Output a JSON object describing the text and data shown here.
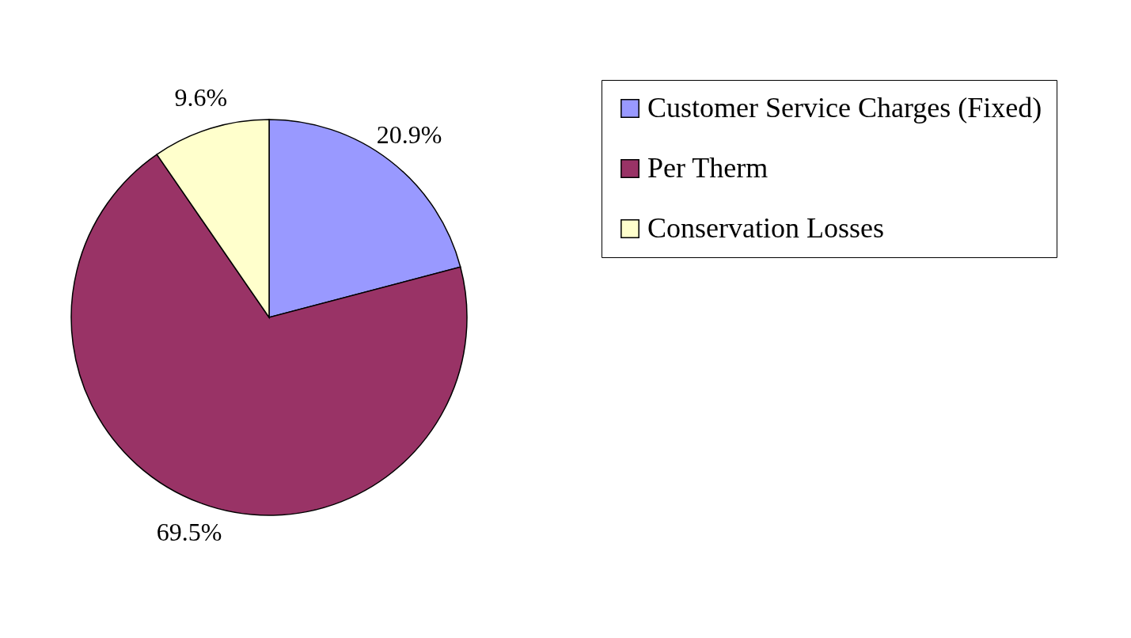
{
  "chart_data": {
    "type": "pie",
    "categories": [
      "Customer Service Charges (Fixed)",
      "Per Therm",
      "Conservation Losses"
    ],
    "values": [
      20.9,
      69.5,
      9.6
    ],
    "colors": [
      "#9999ff",
      "#993366",
      "#ffffcc"
    ],
    "value_labels": [
      "20.9%",
      "69.5%",
      "9.6%"
    ],
    "legend": "right"
  }
}
